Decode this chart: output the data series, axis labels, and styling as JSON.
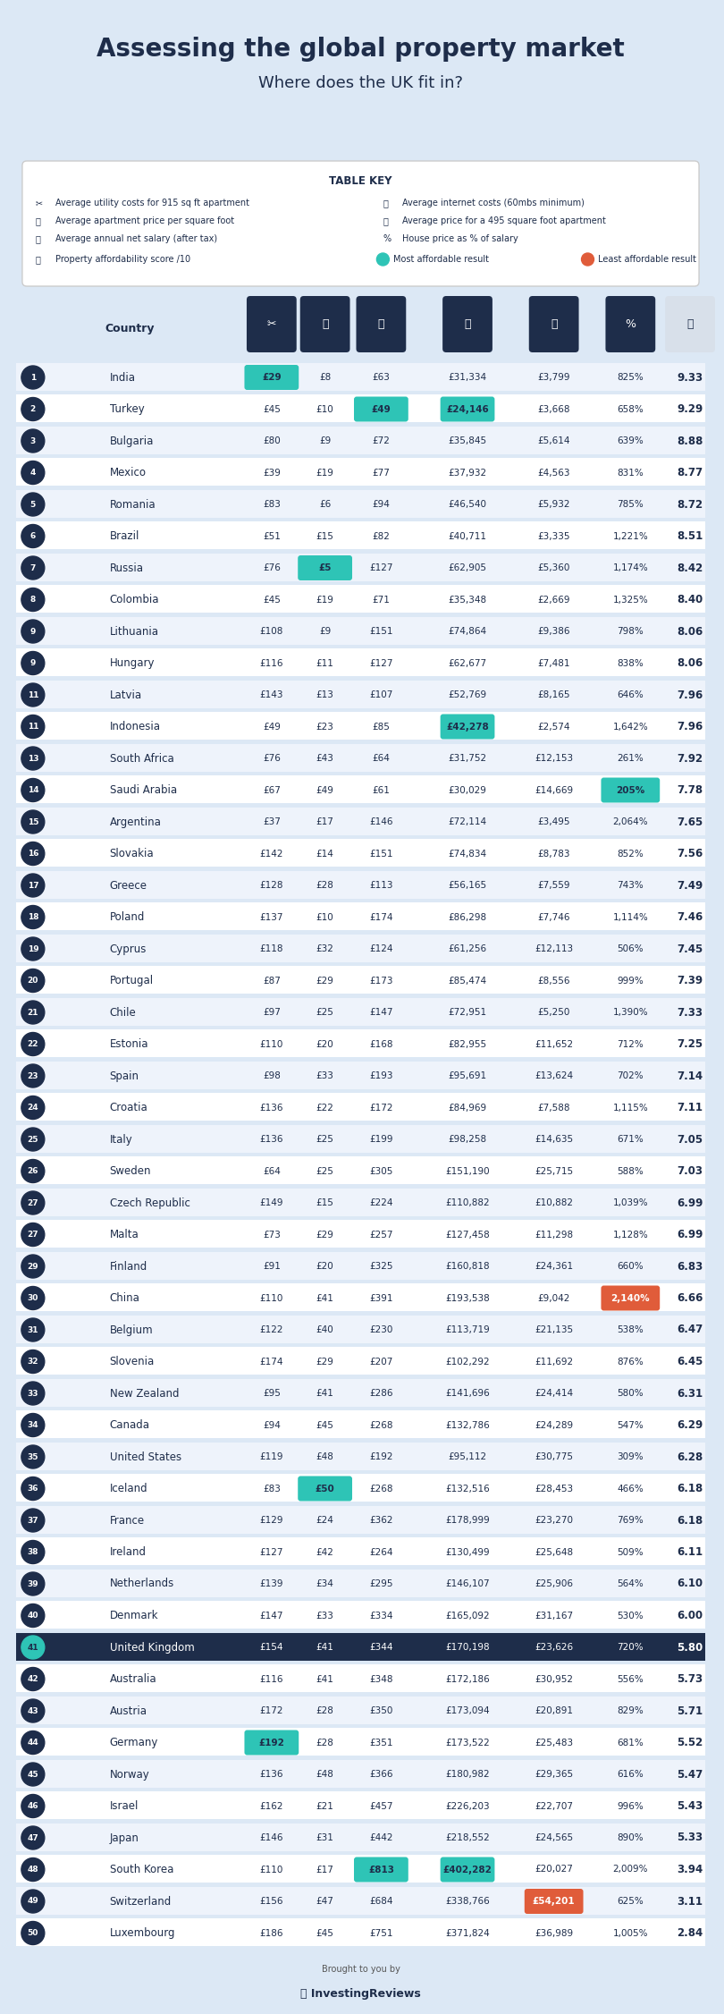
{
  "title": "Assessing the global property market",
  "subtitle": "Where does the UK fit in?",
  "bg_color": "#dce8f5",
  "table_bg": "#ffffff",
  "row_alt_color": "#eef3fb",
  "row_white": "#ffffff",
  "header_dark": "#1e2d4a",
  "teal_highlight": "#2ec4b6",
  "orange_highlight": "#e05c3a",
  "uk_row_color": "#1e2d4a",
  "uk_text_color": "#ffffff",
  "score_bold_color": "#1e2d4a",
  "rows": [
    {
      "rank": 1,
      "country": "India",
      "col1": "£29",
      "col2": "£8",
      "col3": "£63",
      "col4": "£31,334",
      "col5": "£3,799",
      "col6": "825%",
      "score": "9.33",
      "h1": true,
      "h2": false,
      "h3": false,
      "h4": false,
      "h5": false,
      "h6": false
    },
    {
      "rank": 2,
      "country": "Turkey",
      "col1": "£45",
      "col2": "£10",
      "col3": "£49",
      "col4": "£24,146",
      "col5": "£3,668",
      "col6": "658%",
      "score": "9.29",
      "h1": false,
      "h2": false,
      "h3": true,
      "h4": true,
      "h5": false,
      "h6": false
    },
    {
      "rank": 3,
      "country": "Bulgaria",
      "col1": "£80",
      "col2": "£9",
      "col3": "£72",
      "col4": "£35,845",
      "col5": "£5,614",
      "col6": "639%",
      "score": "8.88",
      "h1": false,
      "h2": false,
      "h3": false,
      "h4": false,
      "h5": false,
      "h6": false
    },
    {
      "rank": 4,
      "country": "Mexico",
      "col1": "£39",
      "col2": "£19",
      "col3": "£77",
      "col4": "£37,932",
      "col5": "£4,563",
      "col6": "831%",
      "score": "8.77",
      "h1": false,
      "h2": false,
      "h3": false,
      "h4": false,
      "h5": false,
      "h6": false
    },
    {
      "rank": 5,
      "country": "Romania",
      "col1": "£83",
      "col2": "£6",
      "col3": "£94",
      "col4": "£46,540",
      "col5": "£5,932",
      "col6": "785%",
      "score": "8.72",
      "h1": false,
      "h2": false,
      "h3": false,
      "h4": false,
      "h5": false,
      "h6": false
    },
    {
      "rank": 6,
      "country": "Brazil",
      "col1": "£51",
      "col2": "£15",
      "col3": "£82",
      "col4": "£40,711",
      "col5": "£3,335",
      "col6": "1,221%",
      "score": "8.51",
      "h1": false,
      "h2": false,
      "h3": false,
      "h4": false,
      "h5": false,
      "h6": false
    },
    {
      "rank": 7,
      "country": "Russia",
      "col1": "£76",
      "col2": "£5",
      "col3": "£127",
      "col4": "£62,905",
      "col5": "£5,360",
      "col6": "1,174%",
      "score": "8.42",
      "h1": false,
      "h2": true,
      "h3": false,
      "h4": false,
      "h5": false,
      "h6": false
    },
    {
      "rank": 8,
      "country": "Colombia",
      "col1": "£45",
      "col2": "£19",
      "col3": "£71",
      "col4": "£35,348",
      "col5": "£2,669",
      "col6": "1,325%",
      "score": "8.40",
      "h1": false,
      "h2": false,
      "h3": false,
      "h4": false,
      "h5": false,
      "h6": false
    },
    {
      "rank": 9,
      "country": "Lithuania",
      "col1": "£108",
      "col2": "£9",
      "col3": "£151",
      "col4": "£74,864",
      "col5": "£9,386",
      "col6": "798%",
      "score": "8.06",
      "h1": false,
      "h2": false,
      "h3": false,
      "h4": false,
      "h5": false,
      "h6": false
    },
    {
      "rank": 9,
      "country": "Hungary",
      "col1": "£116",
      "col2": "£11",
      "col3": "£127",
      "col4": "£62,677",
      "col5": "£7,481",
      "col6": "838%",
      "score": "8.06",
      "h1": false,
      "h2": false,
      "h3": false,
      "h4": false,
      "h5": false,
      "h6": false
    },
    {
      "rank": 11,
      "country": "Latvia",
      "col1": "£143",
      "col2": "£13",
      "col3": "£107",
      "col4": "£52,769",
      "col5": "£8,165",
      "col6": "646%",
      "score": "7.96",
      "h1": false,
      "h2": false,
      "h3": false,
      "h4": false,
      "h5": false,
      "h6": false
    },
    {
      "rank": 11,
      "country": "Indonesia",
      "col1": "£49",
      "col2": "£23",
      "col3": "£85",
      "col4": "£42,278",
      "col5": "£2,574",
      "col6": "1,642%",
      "score": "7.96",
      "h1": false,
      "h2": false,
      "h3": false,
      "h4": true,
      "h5": false,
      "h6": false
    },
    {
      "rank": 13,
      "country": "South Africa",
      "col1": "£76",
      "col2": "£43",
      "col3": "£64",
      "col4": "£31,752",
      "col5": "£12,153",
      "col6": "261%",
      "score": "7.92",
      "h1": false,
      "h2": false,
      "h3": false,
      "h4": false,
      "h5": false,
      "h6": false
    },
    {
      "rank": 14,
      "country": "Saudi Arabia",
      "col1": "£67",
      "col2": "£49",
      "col3": "£61",
      "col4": "£30,029",
      "col5": "£14,669",
      "col6": "205%",
      "score": "7.78",
      "h1": false,
      "h2": false,
      "h3": false,
      "h4": false,
      "h5": false,
      "h6": true
    },
    {
      "rank": 15,
      "country": "Argentina",
      "col1": "£37",
      "col2": "£17",
      "col3": "£146",
      "col4": "£72,114",
      "col5": "£3,495",
      "col6": "2,064%",
      "score": "7.65",
      "h1": false,
      "h2": false,
      "h3": false,
      "h4": false,
      "h5": false,
      "h6": false
    },
    {
      "rank": 16,
      "country": "Slovakia",
      "col1": "£142",
      "col2": "£14",
      "col3": "£151",
      "col4": "£74,834",
      "col5": "£8,783",
      "col6": "852%",
      "score": "7.56",
      "h1": false,
      "h2": false,
      "h3": false,
      "h4": false,
      "h5": false,
      "h6": false
    },
    {
      "rank": 17,
      "country": "Greece",
      "col1": "£128",
      "col2": "£28",
      "col3": "£113",
      "col4": "£56,165",
      "col5": "£7,559",
      "col6": "743%",
      "score": "7.49",
      "h1": false,
      "h2": false,
      "h3": false,
      "h4": false,
      "h5": false,
      "h6": false
    },
    {
      "rank": 18,
      "country": "Poland",
      "col1": "£137",
      "col2": "£10",
      "col3": "£174",
      "col4": "£86,298",
      "col5": "£7,746",
      "col6": "1,114%",
      "score": "7.46",
      "h1": false,
      "h2": false,
      "h3": false,
      "h4": false,
      "h5": false,
      "h6": false
    },
    {
      "rank": 19,
      "country": "Cyprus",
      "col1": "£118",
      "col2": "£32",
      "col3": "£124",
      "col4": "£61,256",
      "col5": "£12,113",
      "col6": "506%",
      "score": "7.45",
      "h1": false,
      "h2": false,
      "h3": false,
      "h4": false,
      "h5": false,
      "h6": false
    },
    {
      "rank": 20,
      "country": "Portugal",
      "col1": "£87",
      "col2": "£29",
      "col3": "£173",
      "col4": "£85,474",
      "col5": "£8,556",
      "col6": "999%",
      "score": "7.39",
      "h1": false,
      "h2": false,
      "h3": false,
      "h4": false,
      "h5": false,
      "h6": false
    },
    {
      "rank": 21,
      "country": "Chile",
      "col1": "£97",
      "col2": "£25",
      "col3": "£147",
      "col4": "£72,951",
      "col5": "£5,250",
      "col6": "1,390%",
      "score": "7.33",
      "h1": false,
      "h2": false,
      "h3": false,
      "h4": false,
      "h5": false,
      "h6": false
    },
    {
      "rank": 22,
      "country": "Estonia",
      "col1": "£110",
      "col2": "£20",
      "col3": "£168",
      "col4": "£82,955",
      "col5": "£11,652",
      "col6": "712%",
      "score": "7.25",
      "h1": false,
      "h2": false,
      "h3": false,
      "h4": false,
      "h5": false,
      "h6": false
    },
    {
      "rank": 23,
      "country": "Spain",
      "col1": "£98",
      "col2": "£33",
      "col3": "£193",
      "col4": "£95,691",
      "col5": "£13,624",
      "col6": "702%",
      "score": "7.14",
      "h1": false,
      "h2": false,
      "h3": false,
      "h4": false,
      "h5": false,
      "h6": false
    },
    {
      "rank": 24,
      "country": "Croatia",
      "col1": "£136",
      "col2": "£22",
      "col3": "£172",
      "col4": "£84,969",
      "col5": "£7,588",
      "col6": "1,115%",
      "score": "7.11",
      "h1": false,
      "h2": false,
      "h3": false,
      "h4": false,
      "h5": false,
      "h6": false
    },
    {
      "rank": 25,
      "country": "Italy",
      "col1": "£136",
      "col2": "£25",
      "col3": "£199",
      "col4": "£98,258",
      "col5": "£14,635",
      "col6": "671%",
      "score": "7.05",
      "h1": false,
      "h2": false,
      "h3": false,
      "h4": false,
      "h5": false,
      "h6": false
    },
    {
      "rank": 26,
      "country": "Sweden",
      "col1": "£64",
      "col2": "£25",
      "col3": "£305",
      "col4": "£151,190",
      "col5": "£25,715",
      "col6": "588%",
      "score": "7.03",
      "h1": false,
      "h2": false,
      "h3": false,
      "h4": false,
      "h5": false,
      "h6": false
    },
    {
      "rank": 27,
      "country": "Czech Republic",
      "col1": "£149",
      "col2": "£15",
      "col3": "£224",
      "col4": "£110,882",
      "col5": "£10,882",
      "col6": "1,039%",
      "score": "6.99",
      "h1": false,
      "h2": false,
      "h3": false,
      "h4": false,
      "h5": false,
      "h6": false
    },
    {
      "rank": 27,
      "country": "Malta",
      "col1": "£73",
      "col2": "£29",
      "col3": "£257",
      "col4": "£127,458",
      "col5": "£11,298",
      "col6": "1,128%",
      "score": "6.99",
      "h1": false,
      "h2": false,
      "h3": false,
      "h4": false,
      "h5": false,
      "h6": false
    },
    {
      "rank": 29,
      "country": "Finland",
      "col1": "£91",
      "col2": "£20",
      "col3": "£325",
      "col4": "£160,818",
      "col5": "£24,361",
      "col6": "660%",
      "score": "6.83",
      "h1": false,
      "h2": false,
      "h3": false,
      "h4": false,
      "h5": false,
      "h6": false
    },
    {
      "rank": 30,
      "country": "China",
      "col1": "£110",
      "col2": "£41",
      "col3": "£391",
      "col4": "£193,538",
      "col5": "£9,042",
      "col6": "2,140%",
      "score": "6.66",
      "h1": false,
      "h2": false,
      "h3": false,
      "h4": false,
      "h5": false,
      "h6": true
    },
    {
      "rank": 31,
      "country": "Belgium",
      "col1": "£122",
      "col2": "£40",
      "col3": "£230",
      "col4": "£113,719",
      "col5": "£21,135",
      "col6": "538%",
      "score": "6.47",
      "h1": false,
      "h2": false,
      "h3": false,
      "h4": false,
      "h5": false,
      "h6": false
    },
    {
      "rank": 32,
      "country": "Slovenia",
      "col1": "£174",
      "col2": "£29",
      "col3": "£207",
      "col4": "£102,292",
      "col5": "£11,692",
      "col6": "876%",
      "score": "6.45",
      "h1": false,
      "h2": false,
      "h3": false,
      "h4": false,
      "h5": false,
      "h6": false
    },
    {
      "rank": 33,
      "country": "New Zealand",
      "col1": "£95",
      "col2": "£41",
      "col3": "£286",
      "col4": "£141,696",
      "col5": "£24,414",
      "col6": "580%",
      "score": "6.31",
      "h1": false,
      "h2": false,
      "h3": false,
      "h4": false,
      "h5": false,
      "h6": false
    },
    {
      "rank": 34,
      "country": "Canada",
      "col1": "£94",
      "col2": "£45",
      "col3": "£268",
      "col4": "£132,786",
      "col5": "£24,289",
      "col6": "547%",
      "score": "6.29",
      "h1": false,
      "h2": false,
      "h3": false,
      "h4": false,
      "h5": false,
      "h6": false
    },
    {
      "rank": 35,
      "country": "United States",
      "col1": "£119",
      "col2": "£48",
      "col3": "£192",
      "col4": "£95,112",
      "col5": "£30,775",
      "col6": "309%",
      "score": "6.28",
      "h1": false,
      "h2": false,
      "h3": false,
      "h4": false,
      "h5": false,
      "h6": false
    },
    {
      "rank": 36,
      "country": "Iceland",
      "col1": "£83",
      "col2": "£50",
      "col3": "£268",
      "col4": "£132,516",
      "col5": "£28,453",
      "col6": "466%",
      "score": "6.18",
      "h1": false,
      "h2": true,
      "h3": false,
      "h4": false,
      "h5": false,
      "h6": false
    },
    {
      "rank": 37,
      "country": "France",
      "col1": "£129",
      "col2": "£24",
      "col3": "£362",
      "col4": "£178,999",
      "col5": "£23,270",
      "col6": "769%",
      "score": "6.18",
      "h1": false,
      "h2": false,
      "h3": false,
      "h4": false,
      "h5": false,
      "h6": false
    },
    {
      "rank": 38,
      "country": "Ireland",
      "col1": "£127",
      "col2": "£42",
      "col3": "£264",
      "col4": "£130,499",
      "col5": "£25,648",
      "col6": "509%",
      "score": "6.11",
      "h1": false,
      "h2": false,
      "h3": false,
      "h4": false,
      "h5": false,
      "h6": false
    },
    {
      "rank": 39,
      "country": "Netherlands",
      "col1": "£139",
      "col2": "£34",
      "col3": "£295",
      "col4": "£146,107",
      "col5": "£25,906",
      "col6": "564%",
      "score": "6.10",
      "h1": false,
      "h2": false,
      "h3": false,
      "h4": false,
      "h5": false,
      "h6": false
    },
    {
      "rank": 40,
      "country": "Denmark",
      "col1": "£147",
      "col2": "£33",
      "col3": "£334",
      "col4": "£165,092",
      "col5": "£31,167",
      "col6": "530%",
      "score": "6.00",
      "h1": false,
      "h2": false,
      "h3": false,
      "h4": false,
      "h5": false,
      "h6": false
    },
    {
      "rank": 41,
      "country": "United Kingdom",
      "col1": "£154",
      "col2": "£41",
      "col3": "£344",
      "col4": "£170,198",
      "col5": "£23,626",
      "col6": "720%",
      "score": "5.80",
      "h1": false,
      "h2": false,
      "h3": false,
      "h4": false,
      "h5": false,
      "h6": false,
      "is_uk": true
    },
    {
      "rank": 42,
      "country": "Australia",
      "col1": "£116",
      "col2": "£41",
      "col3": "£348",
      "col4": "£172,186",
      "col5": "£30,952",
      "col6": "556%",
      "score": "5.73",
      "h1": false,
      "h2": false,
      "h3": false,
      "h4": false,
      "h5": false,
      "h6": false
    },
    {
      "rank": 43,
      "country": "Austria",
      "col1": "£172",
      "col2": "£28",
      "col3": "£350",
      "col4": "£173,094",
      "col5": "£20,891",
      "col6": "829%",
      "score": "5.71",
      "h1": false,
      "h2": false,
      "h3": false,
      "h4": false,
      "h5": false,
      "h6": false
    },
    {
      "rank": 44,
      "country": "Germany",
      "col1": "£192",
      "col2": "£28",
      "col3": "£351",
      "col4": "£173,522",
      "col5": "£25,483",
      "col6": "681%",
      "score": "5.52",
      "h1": true,
      "h2": false,
      "h3": false,
      "h4": false,
      "h5": false,
      "h6": false
    },
    {
      "rank": 45,
      "country": "Norway",
      "col1": "£136",
      "col2": "£48",
      "col3": "£366",
      "col4": "£180,982",
      "col5": "£29,365",
      "col6": "616%",
      "score": "5.47",
      "h1": false,
      "h2": false,
      "h3": false,
      "h4": false,
      "h5": false,
      "h6": false
    },
    {
      "rank": 46,
      "country": "Israel",
      "col1": "£162",
      "col2": "£21",
      "col3": "£457",
      "col4": "£226,203",
      "col5": "£22,707",
      "col6": "996%",
      "score": "5.43",
      "h1": false,
      "h2": false,
      "h3": false,
      "h4": false,
      "h5": false,
      "h6": false
    },
    {
      "rank": 47,
      "country": "Japan",
      "col1": "£146",
      "col2": "£31",
      "col3": "£442",
      "col4": "£218,552",
      "col5": "£24,565",
      "col6": "890%",
      "score": "5.33",
      "h1": false,
      "h2": false,
      "h3": false,
      "h4": false,
      "h5": false,
      "h6": false
    },
    {
      "rank": 48,
      "country": "South Korea",
      "col1": "£110",
      "col2": "£17",
      "col3": "£813",
      "col4": "£402,282",
      "col5": "£20,027",
      "col6": "2,009%",
      "score": "3.94",
      "h1": false,
      "h2": false,
      "h3": true,
      "h4": true,
      "h5": false,
      "h6": false
    },
    {
      "rank": 49,
      "country": "Switzerland",
      "col1": "£156",
      "col2": "£47",
      "col3": "£684",
      "col4": "£338,766",
      "col5": "£54,201",
      "col6": "625%",
      "score": "3.11",
      "h1": false,
      "h2": false,
      "h3": false,
      "h4": false,
      "h5": true,
      "h6": false
    },
    {
      "rank": 50,
      "country": "Luxembourg",
      "col1": "£186",
      "col2": "£45",
      "col3": "£751",
      "col4": "£371,824",
      "col5": "£36,989",
      "col6": "1,005%",
      "score": "2.84",
      "h1": false,
      "h2": false,
      "h3": false,
      "h4": false,
      "h5": false,
      "h6": false
    }
  ]
}
